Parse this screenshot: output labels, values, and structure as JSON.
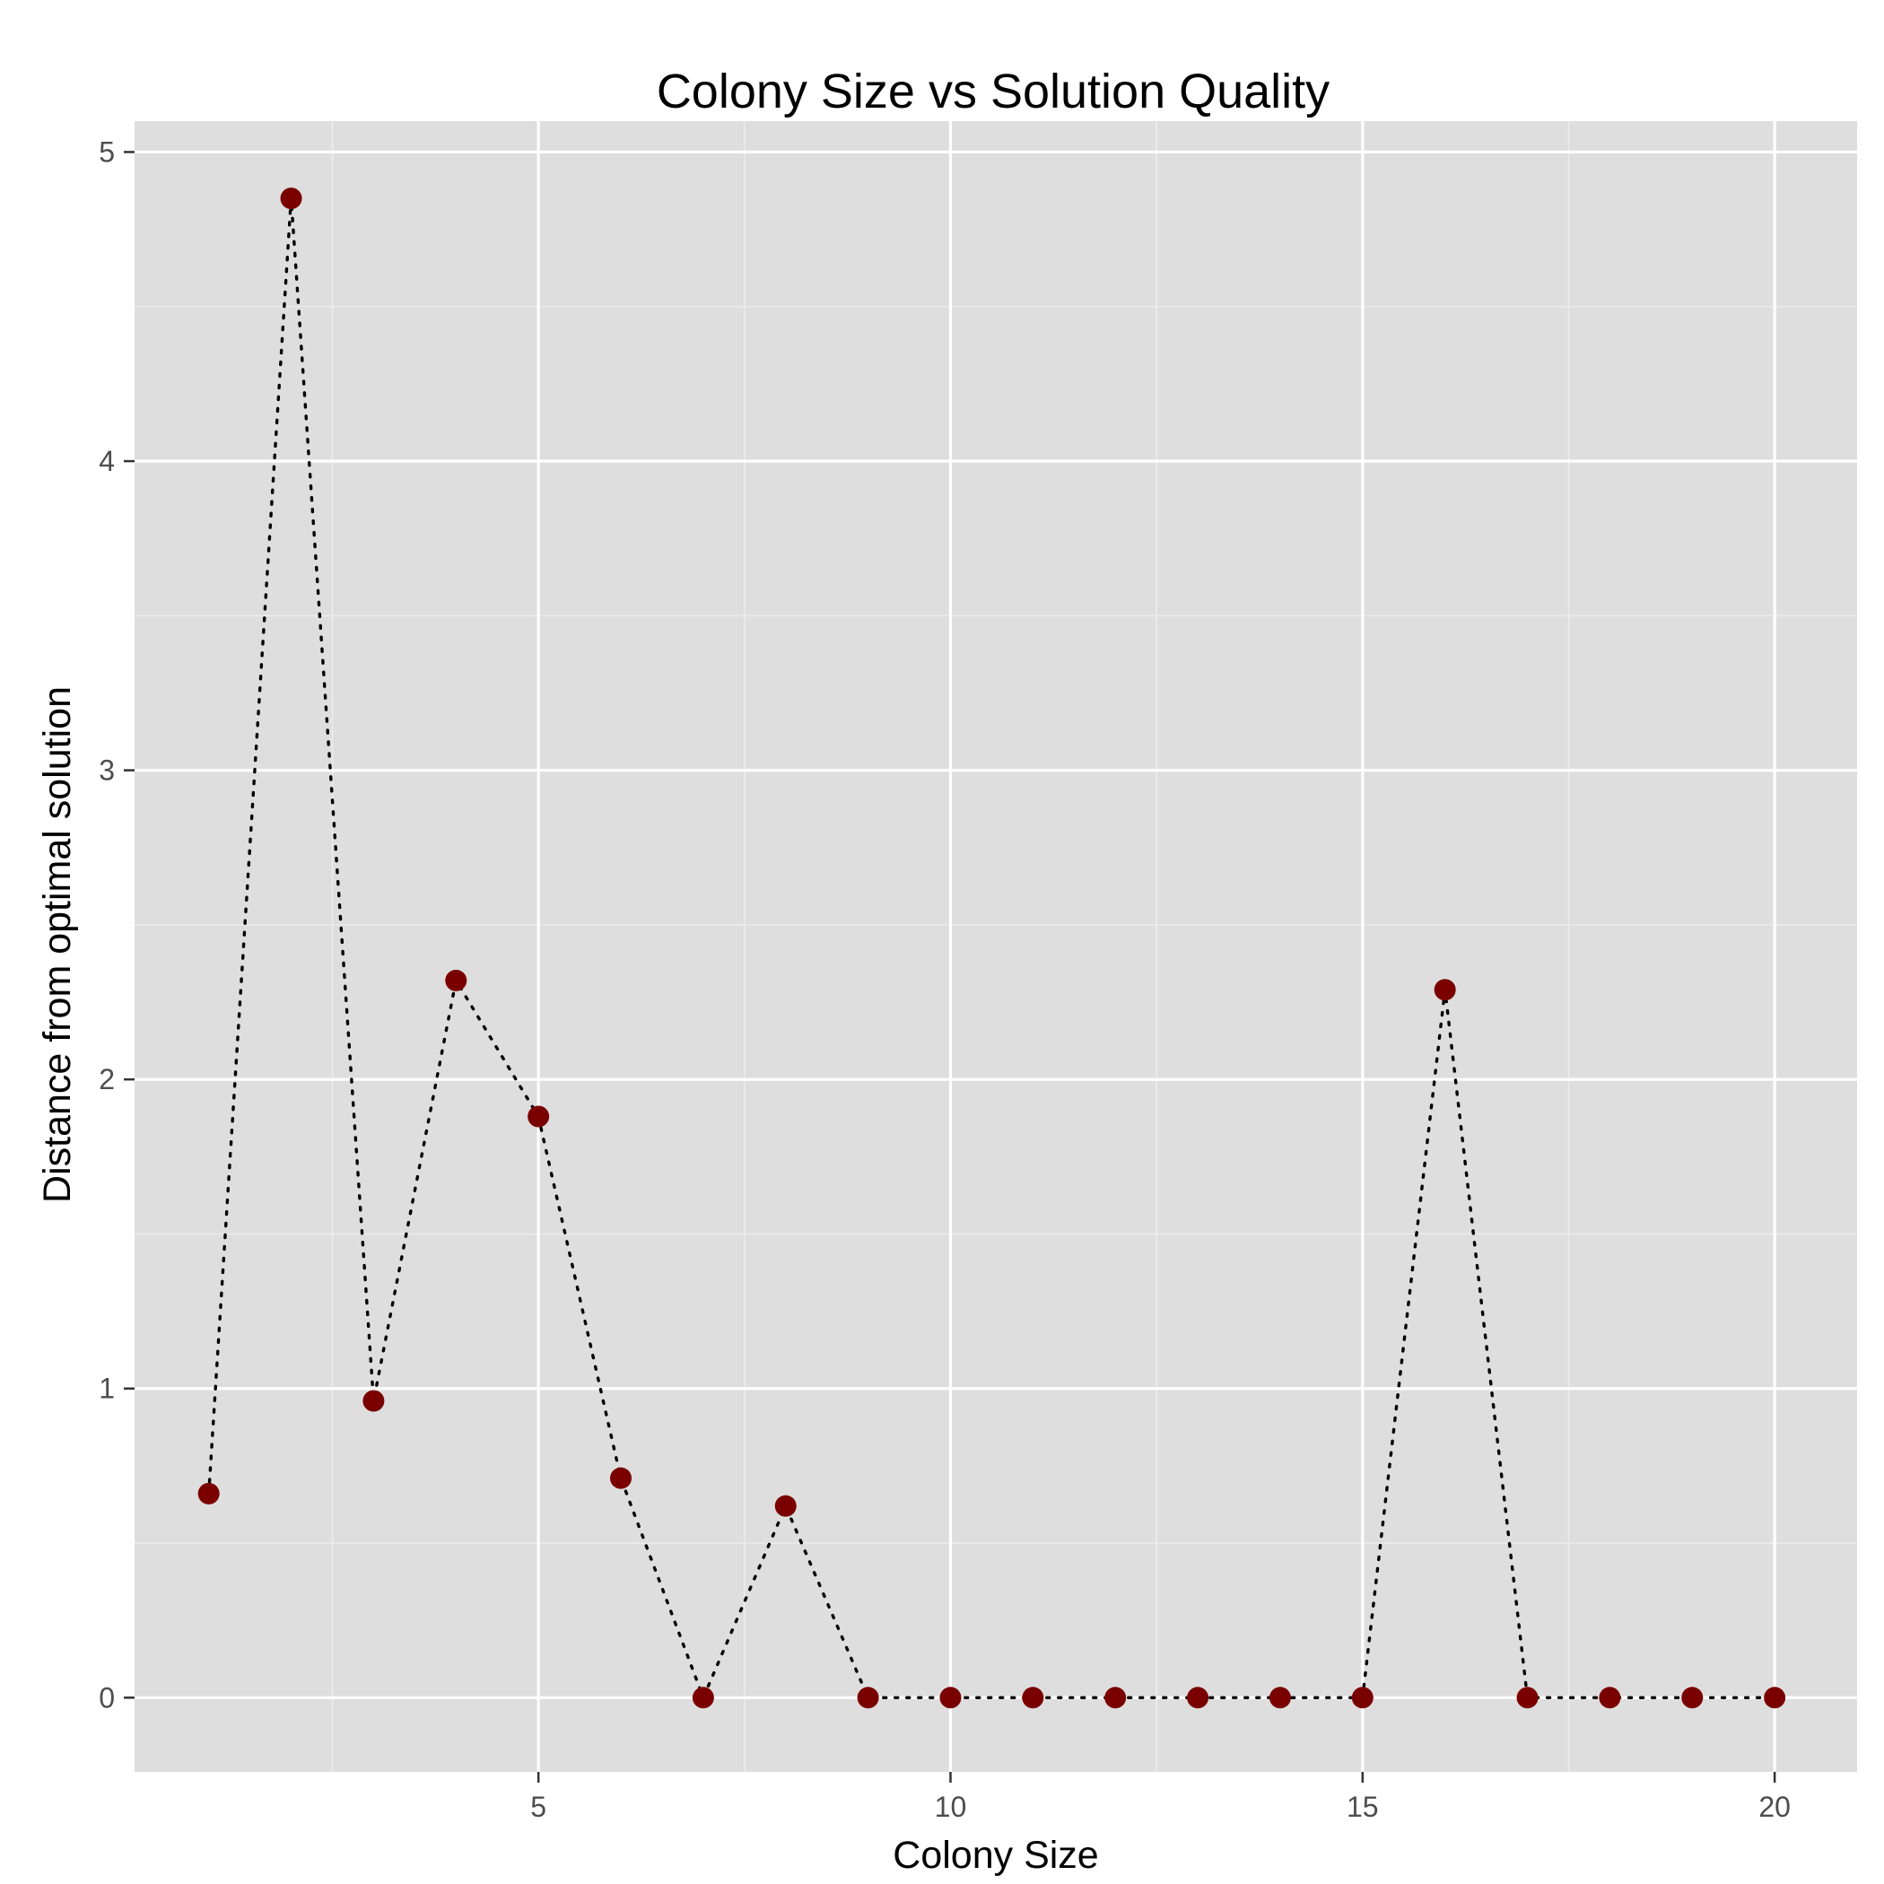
{
  "chart_data": {
    "type": "line",
    "title": "Colony Size vs Solution Quality",
    "xlabel": "Colony Size",
    "ylabel": "Distance from optimal solution",
    "xlim": [
      0.1,
      21
    ],
    "ylim": [
      -0.24,
      5.1
    ],
    "x_ticks": [
      5,
      10,
      15,
      20
    ],
    "y_ticks": [
      0,
      1,
      2,
      3,
      4,
      5
    ],
    "grid": true,
    "legend": "none",
    "line_style": "dotted",
    "colors": {
      "panel": "#dedede",
      "grid_major": "#ffffff",
      "grid_minor": "#ececec",
      "line": "#000000",
      "point": "#7a0000"
    },
    "series": [
      {
        "x": [
          1,
          2,
          3,
          4,
          5,
          6,
          7,
          8,
          9,
          10,
          11,
          12,
          13,
          14,
          15,
          16,
          17,
          18,
          19,
          20
        ],
        "values": [
          0.66,
          4.85,
          0.96,
          2.32,
          1.88,
          0.71,
          0.0,
          0.62,
          0.0,
          0.0,
          0.0,
          0.0,
          0.0,
          0.0,
          0.0,
          2.29,
          0.0,
          0.0,
          0.0,
          0.0
        ]
      }
    ]
  }
}
